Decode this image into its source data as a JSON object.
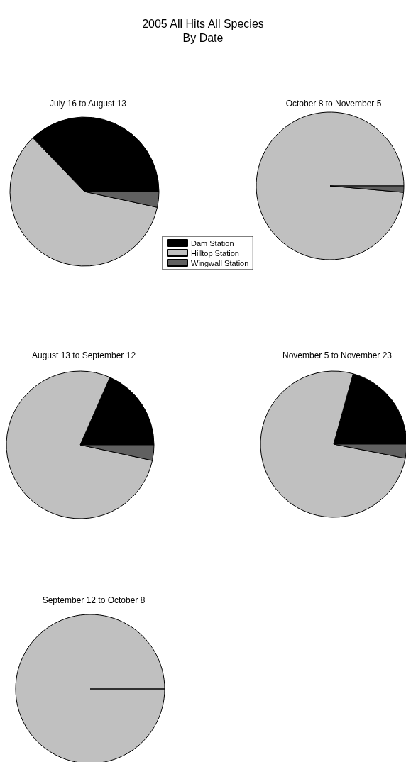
{
  "chart_data": {
    "type": "pie",
    "title": "2005 All Hits All Species",
    "subtitle": "By Date",
    "categories": [
      "Dam Station",
      "Hilltop Station",
      "Wingwall Station"
    ],
    "colors": [
      "#000000",
      "#c0c0c0",
      "#606060"
    ],
    "legend": "center",
    "series": [
      {
        "name": "July 16 to August 13",
        "values": [
          37.2,
          59.4,
          3.4
        ]
      },
      {
        "name": "October 8 to November 5",
        "values": [
          0,
          98.6,
          1.4
        ]
      },
      {
        "name": "August 13 to September 12",
        "values": [
          18.4,
          78.2,
          3.4
        ]
      },
      {
        "name": "November 5 to November 23",
        "values": [
          20.7,
          76.2,
          3.1
        ]
      },
      {
        "name": "September 12 to October 8",
        "values": [
          0,
          100,
          0
        ]
      }
    ]
  }
}
